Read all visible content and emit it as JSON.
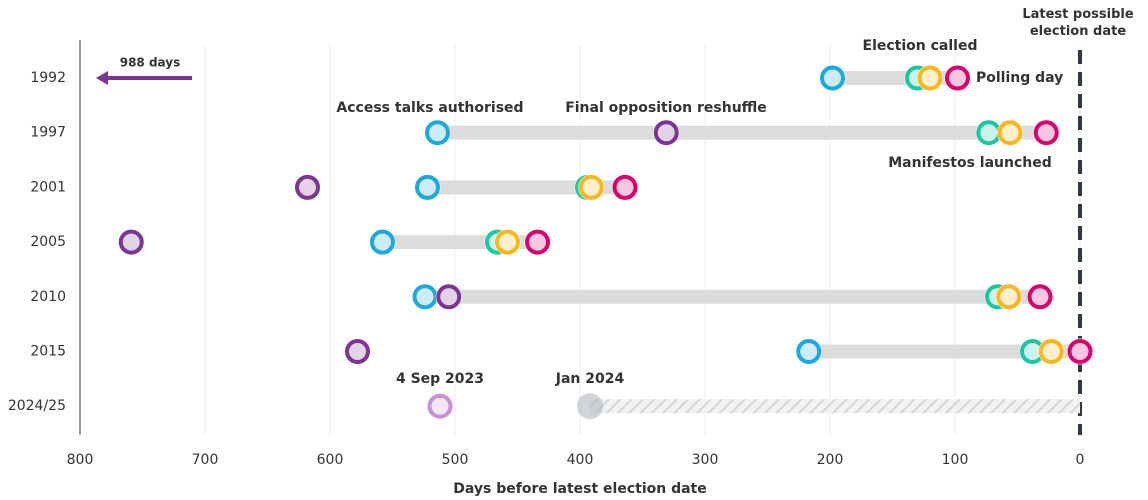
{
  "chart_data": {
    "type": "dot",
    "x_label": "Days before latest election date",
    "categories": [
      "1992",
      "1997",
      "2001",
      "2005",
      "2010",
      "2015",
      "2024/25"
    ],
    "xlim": [
      800,
      0
    ],
    "xticks": [
      800,
      700,
      600,
      500,
      400,
      300,
      200,
      100,
      0
    ],
    "grid": true,
    "series": [
      {
        "name": "Access talks authorised",
        "color": "#1ba9de",
        "values": [
          198,
          514,
          522,
          558,
          524,
          217,
          null
        ]
      },
      {
        "name": "Final opposition reshuffle",
        "color": "#7d3593",
        "values": [
          988,
          331,
          618,
          759,
          505,
          578,
          null
        ],
        "value_labels": [
          "988 days",
          null,
          null,
          null,
          null,
          null,
          null
        ]
      },
      {
        "name": "Election called",
        "color": "#1bc6a2",
        "values": [
          130,
          73,
          394,
          466,
          66,
          38,
          null
        ]
      },
      {
        "name": "Manifestos launched",
        "color": "#f8b81c",
        "values": [
          120,
          56,
          391,
          458,
          57,
          23,
          null
        ]
      },
      {
        "name": "Polling day",
        "color": "#d8006d",
        "values": [
          98,
          27,
          364,
          434,
          32,
          0,
          null
        ]
      }
    ],
    "annotations": [
      {
        "label": "4 Sep 2023",
        "value": 512,
        "color": "#c990d6"
      },
      {
        "label": "Jan 2024",
        "value": 392,
        "color": "#b0b8c0"
      }
    ],
    "reference_line": {
      "value": 0,
      "label": "Latest possible election date"
    }
  }
}
